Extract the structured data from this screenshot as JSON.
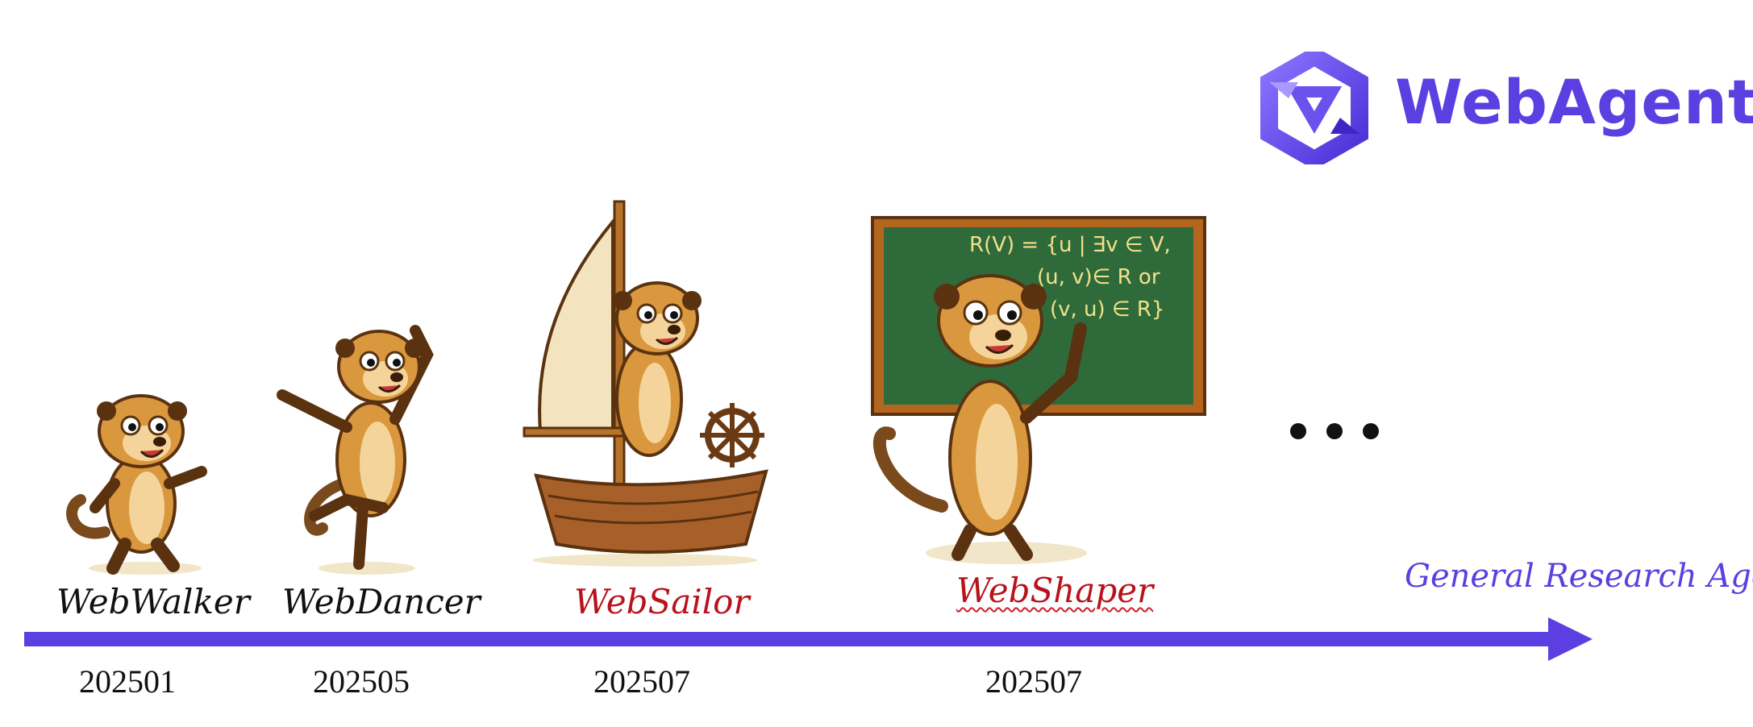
{
  "brand": {
    "name": "WebAgent",
    "accent_color": "#5b3fe0",
    "logo_icon": "hexagon-triangle-logo"
  },
  "timeline": {
    "arrow_color": "#5b3fe0",
    "continuation": "…",
    "goal_label": "General Research Agent",
    "items": [
      {
        "name": "WebWalker",
        "date": "202501",
        "name_color": "#111111",
        "mascot": "meerkat-walking"
      },
      {
        "name": "WebDancer",
        "date": "202505",
        "name_color": "#111111",
        "mascot": "meerkat-dancing"
      },
      {
        "name": "WebSailor",
        "date": "202507",
        "name_color": "#b8121b",
        "mascot": "meerkat-on-sailboat"
      },
      {
        "name": "WebShaper",
        "date": "202507",
        "name_color": "#b8121b",
        "mascot": "meerkat-at-chalkboard"
      }
    ]
  },
  "chalkboard": {
    "lines": [
      "R(V) = {u | ∃v ∈ V,",
      "(u, v)∈ R or",
      "(v, u) ∈ R}"
    ]
  }
}
